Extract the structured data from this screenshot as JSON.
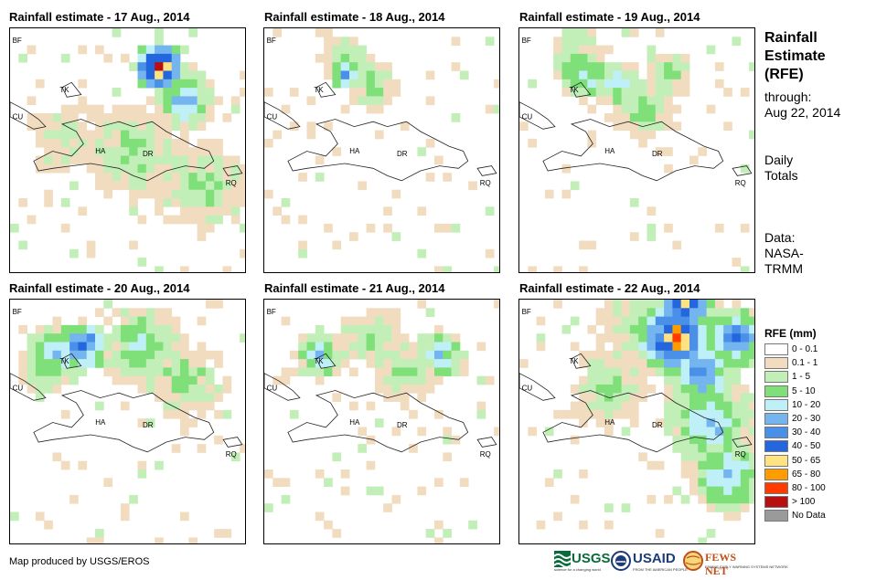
{
  "panels": [
    {
      "title": "Rainfall estimate - 17 Aug., 2014"
    },
    {
      "title": "Rainfall estimate - 18 Aug., 2014"
    },
    {
      "title": "Rainfall estimate - 19 Aug., 2014"
    },
    {
      "title": "Rainfall estimate - 20 Aug., 2014"
    },
    {
      "title": "Rainfall estimate - 21 Aug., 2014"
    },
    {
      "title": "Rainfall estimate - 22 Aug., 2014"
    }
  ],
  "map_labels": {
    "bf": "BF",
    "cu": "CU",
    "tk": "TK",
    "ha": "HA",
    "dr": "DR",
    "rq": "RQ"
  },
  "sidebar": {
    "title_line1": "Rainfall",
    "title_line2": "Estimate",
    "title_line3": "(RFE)",
    "through_label": "through:",
    "through_date": "Aug 22, 2014",
    "totals_line1": "Daily",
    "totals_line2": "Totals",
    "data_line1": "Data:",
    "data_line2": "NASA-",
    "data_line3": "TRMM"
  },
  "legend": {
    "title": "RFE (mm)",
    "items": [
      {
        "label": "0 - 0.1",
        "color": "#ffffff"
      },
      {
        "label": "0.1 - 1",
        "color": "#f2dcc0"
      },
      {
        "label": "1 - 5",
        "color": "#c2efb8"
      },
      {
        "label": "5 - 10",
        "color": "#7fe07a"
      },
      {
        "label": "10 - 20",
        "color": "#bff0f7"
      },
      {
        "label": "20 - 30",
        "color": "#74b5f0"
      },
      {
        "label": "30 - 40",
        "color": "#4a8fe8"
      },
      {
        "label": "40 - 50",
        "color": "#2366de"
      },
      {
        "label": "50 - 65",
        "color": "#ffe383"
      },
      {
        "label": "65 - 80",
        "color": "#ff9d00"
      },
      {
        "label": "80 - 100",
        "color": "#ff3b00"
      },
      {
        "label": "> 100",
        "color": "#b81010"
      },
      {
        "label": "No Data",
        "color": "#9a9a9a"
      }
    ]
  },
  "footer": {
    "credit": "Map produced by USGS/EROS",
    "usgs": "USGS",
    "usgs_tagline": "science for a changing world",
    "usaid": "USAID",
    "usaid_tagline": "FROM THE AMERICAN PEOPLE",
    "fewsnet": "FEWS NET",
    "fewsnet_tagline": "FAMINE EARLY WARNING SYSTEMS NETWORK"
  }
}
